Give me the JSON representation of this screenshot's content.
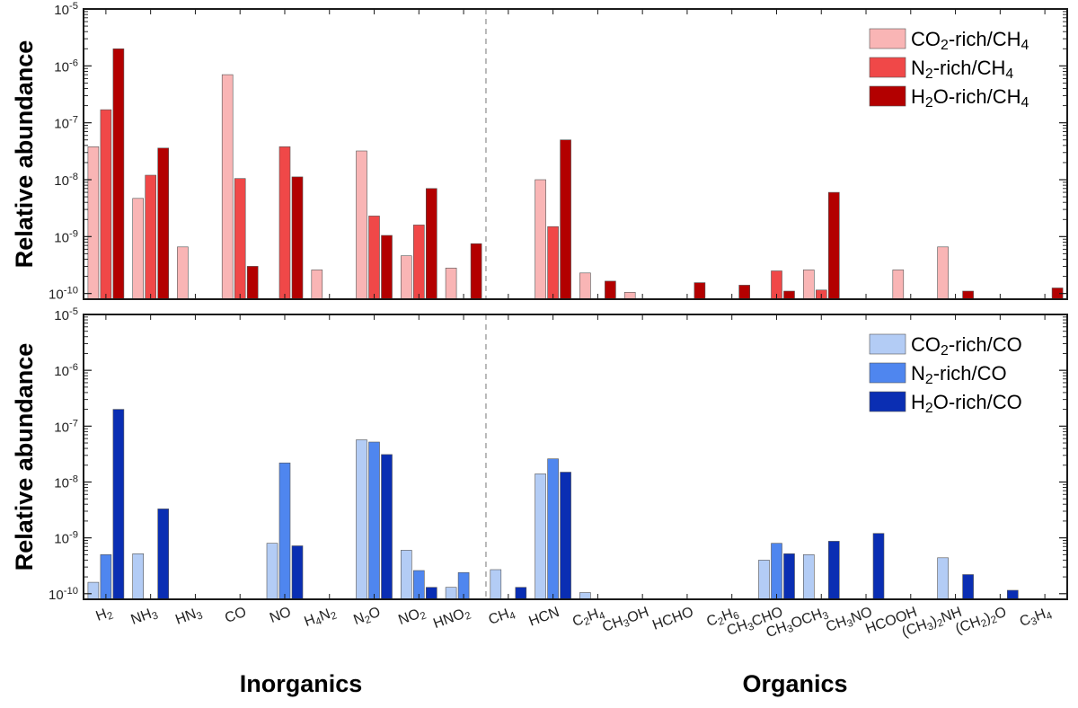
{
  "chart_data": [
    {
      "type": "bar",
      "ylabel": "Relative abundance",
      "yscale": "log",
      "ylim": [
        8e-11,
        1e-05
      ],
      "ytick_labels": [
        "10-10",
        "10-9",
        "10-8",
        "10-7",
        "10-6",
        "10-5"
      ],
      "categories": [
        "H2",
        "NH3",
        "HN3",
        "CO",
        "NO",
        "H4N2",
        "N2O",
        "NO2",
        "HNO2",
        "CH4",
        "HCN",
        "C2H4",
        "CH3OH",
        "HCHO",
        "C2H6",
        "CH3CHO",
        "CH3OCH3",
        "CH3NO",
        "HCOOH",
        "(CH3)2NH",
        "(CH2)2O",
        "C3H4"
      ],
      "series": [
        {
          "name": "CO2-rich/CH4",
          "color": "#f9b5b5",
          "values": [
            3.8e-08,
            4.7e-09,
            6.6e-10,
            7e-07,
            null,
            2.6e-10,
            3.2e-08,
            4.6e-10,
            2.8e-10,
            null,
            1e-08,
            2.3e-10,
            1.05e-10,
            null,
            null,
            null,
            2.6e-10,
            null,
            2.6e-10,
            6.6e-10,
            null,
            null
          ]
        },
        {
          "name": "N2-rich/CH4",
          "color": "#f04848",
          "values": [
            1.7e-07,
            1.2e-08,
            null,
            1.05e-08,
            3.8e-08,
            null,
            2.3e-09,
            1.6e-09,
            null,
            null,
            1.5e-09,
            null,
            null,
            null,
            null,
            2.5e-10,
            1.15e-10,
            null,
            null,
            null,
            null,
            null
          ]
        },
        {
          "name": "H2O-rich/CH4",
          "color": "#b30000",
          "values": [
            2e-06,
            3.6e-08,
            null,
            3e-10,
            1.12e-08,
            null,
            1.05e-09,
            7e-09,
            7.5e-10,
            null,
            5e-08,
            1.65e-10,
            null,
            1.55e-10,
            1.4e-10,
            1.1e-10,
            6e-09,
            null,
            null,
            1.1e-10,
            null,
            1.25e-10
          ]
        }
      ]
    },
    {
      "type": "bar",
      "ylabel": "Relative abundance",
      "yscale": "log",
      "ylim": [
        8e-11,
        1e-05
      ],
      "ytick_labels": [
        "10-10",
        "10-9",
        "10-8",
        "10-7",
        "10-6",
        "10-5"
      ],
      "categories": [
        "H2",
        "NH3",
        "HN3",
        "CO",
        "NO",
        "H4N2",
        "N2O",
        "NO2",
        "HNO2",
        "CH4",
        "HCN",
        "C2H4",
        "CH3OH",
        "HCHO",
        "C2H6",
        "CH3CHO",
        "CH3OCH3",
        "CH3NO",
        "HCOOH",
        "(CH3)2NH",
        "(CH2)2O",
        "C3H4"
      ],
      "series": [
        {
          "name": "CO2-rich/CO",
          "color": "#b3ccf5",
          "values": [
            1.6e-10,
            5.2e-10,
            null,
            null,
            8e-10,
            null,
            5.7e-08,
            6e-10,
            1.3e-10,
            2.7e-10,
            1.4e-08,
            1.05e-10,
            null,
            null,
            null,
            4e-10,
            5e-10,
            null,
            null,
            4.4e-10,
            null,
            null
          ]
        },
        {
          "name": "N2-rich/CO",
          "color": "#4f86ef",
          "values": [
            5e-10,
            null,
            null,
            null,
            2.2e-08,
            null,
            5.2e-08,
            2.6e-10,
            2.4e-10,
            null,
            2.6e-08,
            null,
            null,
            null,
            null,
            8e-10,
            null,
            null,
            null,
            null,
            null,
            null
          ]
        },
        {
          "name": "H2O-rich/CO",
          "color": "#0a2eb3",
          "values": [
            2e-07,
            3.3e-09,
            null,
            null,
            7.2e-10,
            null,
            3.1e-08,
            1.3e-10,
            null,
            1.3e-10,
            1.5e-08,
            null,
            null,
            null,
            null,
            5.2e-10,
            8.7e-10,
            1.2e-09,
            null,
            2.2e-10,
            1.15e-10,
            null
          ]
        }
      ]
    }
  ],
  "group_labels": {
    "inorganic": "Inorganics",
    "organic": "Organics"
  },
  "colors": {
    "axis": "#1a1a1a",
    "divider": "#aaaaaa"
  }
}
